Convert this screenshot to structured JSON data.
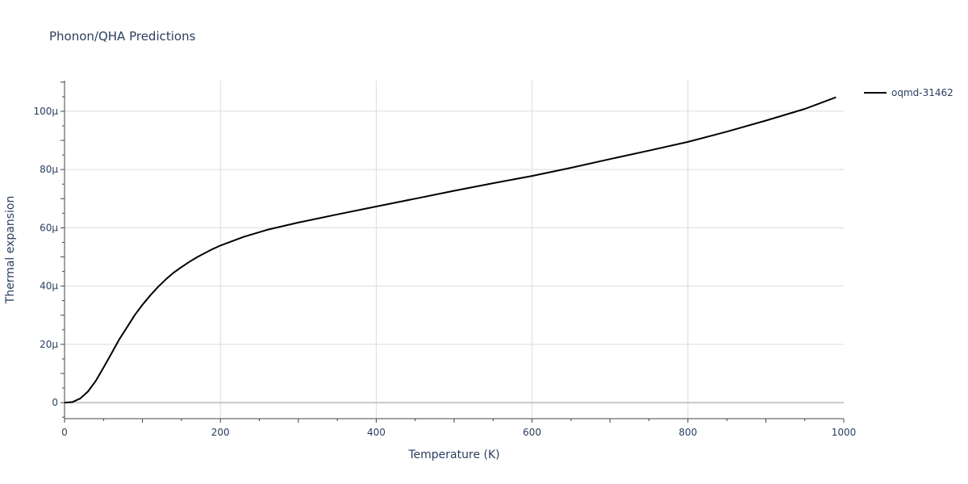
{
  "chart_data": {
    "type": "line",
    "title": "Phonon/QHA Predictions",
    "xlabel": "Temperature (K)",
    "ylabel": "Thermal expansion",
    "xlim": [
      0,
      1000
    ],
    "ylim": [
      -5.5,
      110.5
    ],
    "unit_scale": 1e-06,
    "xticks": [
      0,
      200,
      400,
      600,
      800,
      1000
    ],
    "xtick_labels": [
      "0",
      "200",
      "400",
      "600",
      "800",
      "1000"
    ],
    "yticks": [
      0,
      20,
      40,
      60,
      80,
      100
    ],
    "ytick_labels": [
      "0",
      "20μ",
      "40μ",
      "60μ",
      "80μ",
      "100μ"
    ],
    "grid": true,
    "legend_position": "top-right",
    "line_color": "#000000",
    "series": [
      {
        "name": "oqmd-31462",
        "x": [
          0,
          10,
          20,
          30,
          40,
          50,
          60,
          70,
          80,
          90,
          100,
          110,
          120,
          130,
          140,
          150,
          160,
          170,
          180,
          190,
          200,
          230,
          260,
          300,
          350,
          400,
          450,
          500,
          550,
          600,
          650,
          700,
          750,
          800,
          850,
          900,
          950,
          990
        ],
        "y": [
          0,
          0.2,
          1.4,
          3.8,
          7.4,
          12.0,
          16.8,
          21.6,
          25.8,
          30.0,
          33.6,
          36.8,
          39.7,
          42.3,
          44.6,
          46.5,
          48.3,
          49.9,
          51.3,
          52.7,
          53.9,
          56.9,
          59.3,
          61.8,
          64.6,
          67.3,
          70.0,
          72.7,
          75.3,
          77.8,
          80.6,
          83.6,
          86.5,
          89.5,
          93.0,
          96.8,
          100.8,
          104.8
        ]
      }
    ]
  }
}
